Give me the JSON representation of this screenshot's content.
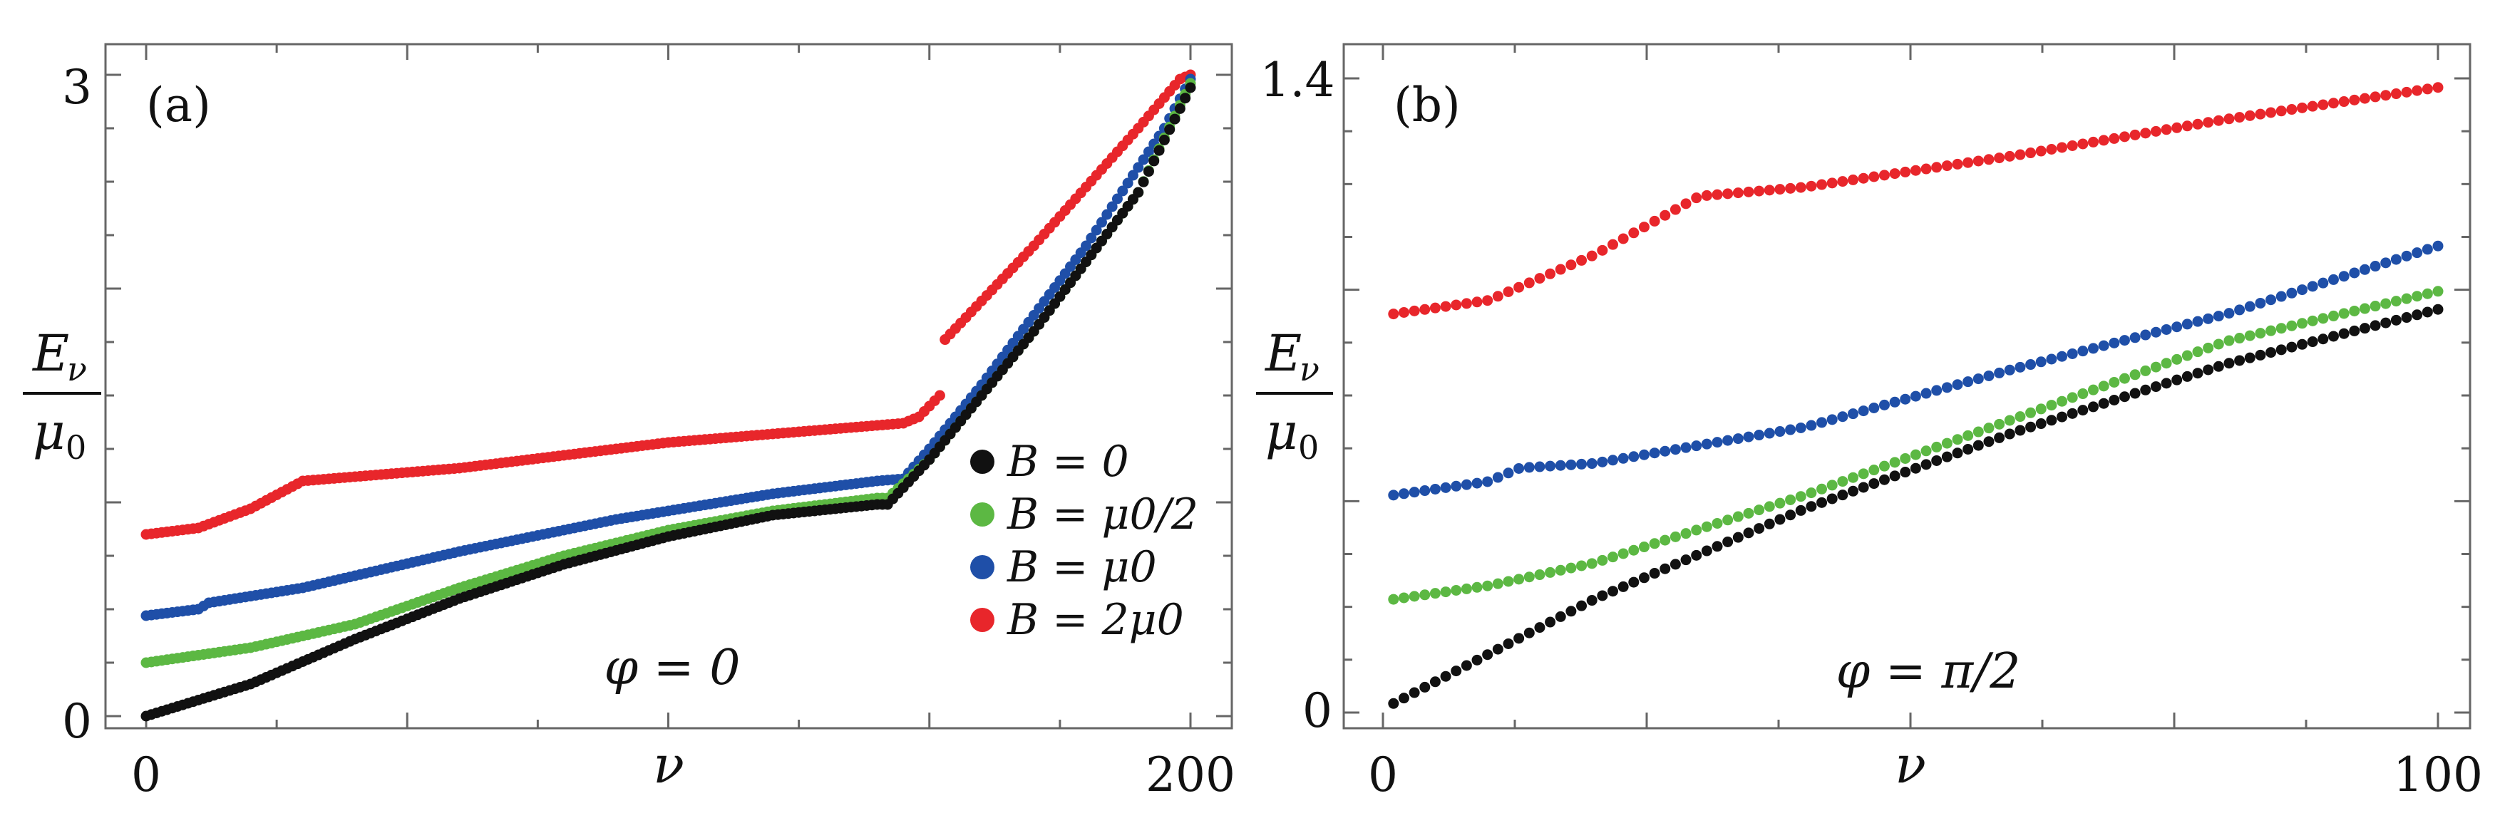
{
  "chart_data": [
    {
      "id": "a",
      "type": "scatter",
      "panel_label": "(a)",
      "xlabel": "ν",
      "ylabel_num": "E",
      "ylabel_sub": "ν",
      "ylabel_den": "μ",
      "ylabel_den_sub": "0",
      "xlim": [
        0,
        200
      ],
      "ylim": [
        0,
        3
      ],
      "xticks": [
        {
          "value": 0,
          "label": "0"
        },
        {
          "value": 200,
          "label": "200"
        }
      ],
      "yticks": [
        {
          "value": 0,
          "label": "0"
        },
        {
          "value": 3,
          "label": "3"
        }
      ],
      "annotation": "φ = 0",
      "legend": {
        "position": "bottom-right",
        "entries": [
          {
            "label": "B = 0",
            "color": "#111111"
          },
          {
            "label": "B = μ0/2",
            "color": "#5cb843"
          },
          {
            "label": "B = μ0",
            "color": "#1f4fa8"
          },
          {
            "label": "B = 2μ0",
            "color": "#e8262b"
          }
        ]
      },
      "series": [
        {
          "name": "B = 2μ0",
          "color": "#e8262b",
          "n_points": 200,
          "knots": [
            [
              0,
              0.85
            ],
            [
              10,
              0.88
            ],
            [
              20,
              0.97
            ],
            [
              30,
              1.1
            ],
            [
              60,
              1.16
            ],
            [
              100,
              1.28
            ],
            [
              140,
              1.36
            ],
            [
              145,
              1.37
            ],
            [
              148,
              1.4
            ],
            [
              152,
              1.5
            ]
          ],
          "segment2": [
            [
              151,
              1.71
            ],
            [
              170,
              2.2
            ],
            [
              190,
              2.75
            ],
            [
              198,
              2.98
            ],
            [
              200,
              3.0
            ]
          ]
        },
        {
          "name": "B = μ0",
          "color": "#1f4fa8",
          "n_points": 200,
          "knots": [
            [
              0,
              0.47
            ],
            [
              10,
              0.5
            ],
            [
              12,
              0.53
            ],
            [
              30,
              0.6
            ],
            [
              60,
              0.77
            ],
            [
              90,
              0.92
            ],
            [
              120,
              1.04
            ],
            [
              140,
              1.1
            ],
            [
              145,
              1.11
            ],
            [
              150,
              1.25
            ],
            [
              160,
              1.55
            ],
            [
              180,
              2.2
            ],
            [
              195,
              2.75
            ],
            [
              200,
              2.98
            ]
          ]
        },
        {
          "name": "B = μ0/2",
          "color": "#5cb843",
          "n_points": 200,
          "knots": [
            [
              0,
              0.25
            ],
            [
              20,
              0.32
            ],
            [
              40,
              0.43
            ],
            [
              60,
              0.6
            ],
            [
              80,
              0.75
            ],
            [
              100,
              0.87
            ],
            [
              120,
              0.96
            ],
            [
              140,
              1.02
            ],
            [
              142,
              1.02
            ],
            [
              150,
              1.2
            ],
            [
              170,
              1.8
            ],
            [
              190,
              2.45
            ],
            [
              200,
              2.96
            ]
          ]
        },
        {
          "name": "B = 0",
          "color": "#111111",
          "n_points": 200,
          "knots": [
            [
              0,
              0.0
            ],
            [
              20,
              0.15
            ],
            [
              40,
              0.36
            ],
            [
              60,
              0.55
            ],
            [
              80,
              0.71
            ],
            [
              100,
              0.84
            ],
            [
              120,
              0.94
            ],
            [
              140,
              0.99
            ],
            [
              142,
              0.99
            ],
            [
              150,
              1.2
            ],
            [
              170,
              1.8
            ],
            [
              190,
              2.45
            ],
            [
              200,
              2.94
            ]
          ]
        }
      ]
    },
    {
      "id": "b",
      "type": "scatter",
      "panel_label": "(b)",
      "xlabel": "ν",
      "ylabel_num": "E",
      "ylabel_sub": "ν",
      "ylabel_den": "μ",
      "ylabel_den_sub": "0",
      "xlim": [
        0,
        100
      ],
      "ylim": [
        0,
        1.4
      ],
      "xticks": [
        {
          "value": 0,
          "label": "0"
        },
        {
          "value": 100,
          "label": "100"
        }
      ],
      "yticks": [
        {
          "value": 0,
          "label": "0"
        },
        {
          "value": 1.4,
          "label": "1.4"
        }
      ],
      "annotation": "φ = π/2",
      "series": [
        {
          "name": "B = 2μ0",
          "color": "#e8262b",
          "n_points": 100,
          "knots": [
            [
              1,
              0.88
            ],
            [
              10,
              0.91
            ],
            [
              20,
              1.01
            ],
            [
              30,
              1.14
            ],
            [
              40,
              1.16
            ],
            [
              60,
              1.23
            ],
            [
              80,
              1.31
            ],
            [
              100,
              1.38
            ]
          ]
        },
        {
          "name": "B = μ0",
          "color": "#1f4fa8",
          "n_points": 100,
          "knots": [
            [
              1,
              0.48
            ],
            [
              10,
              0.51
            ],
            [
              13,
              0.54
            ],
            [
              20,
              0.55
            ],
            [
              40,
              0.63
            ],
            [
              60,
              0.76
            ],
            [
              80,
              0.88
            ],
            [
              100,
              1.03
            ]
          ]
        },
        {
          "name": "B = μ0/2",
          "color": "#5cb843",
          "n_points": 100,
          "knots": [
            [
              1,
              0.25
            ],
            [
              10,
              0.28
            ],
            [
              20,
              0.33
            ],
            [
              40,
              0.48
            ],
            [
              60,
              0.65
            ],
            [
              80,
              0.82
            ],
            [
              100,
              0.93
            ]
          ]
        },
        {
          "name": "B = 0",
          "color": "#111111",
          "n_points": 100,
          "knots": [
            [
              1,
              0.02
            ],
            [
              20,
              0.25
            ],
            [
              40,
              0.45
            ],
            [
              60,
              0.62
            ],
            [
              80,
              0.77
            ],
            [
              100,
              0.89
            ]
          ]
        }
      ]
    }
  ]
}
